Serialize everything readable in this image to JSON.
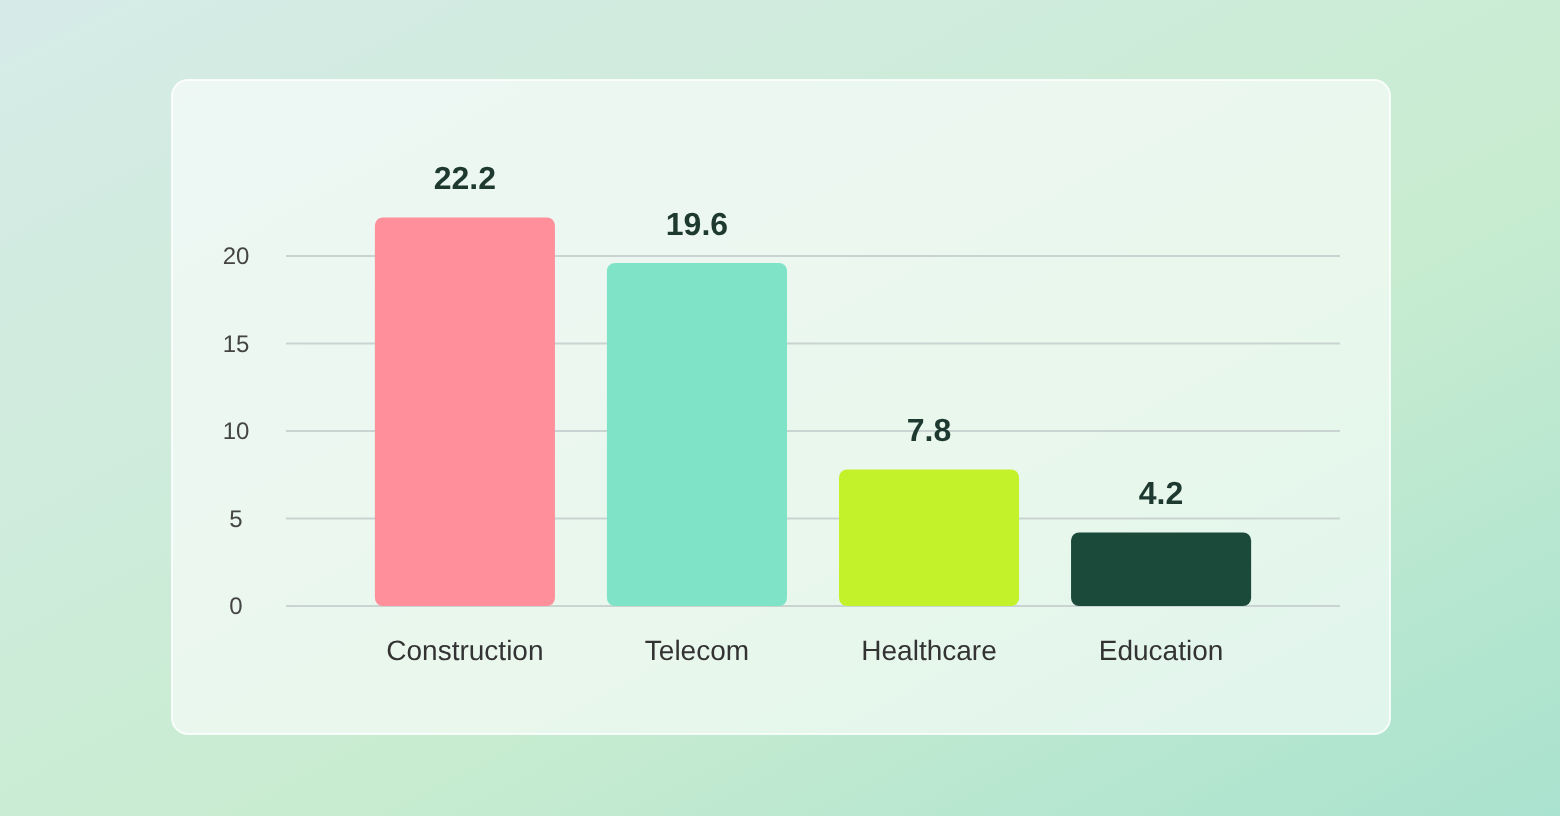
{
  "chart_data": {
    "type": "bar",
    "categories": [
      "Construction",
      "Telecom",
      "Healthcare",
      "Education"
    ],
    "values": [
      22.2,
      19.6,
      7.8,
      4.2
    ],
    "colors": [
      "#ff8f9a",
      "#7fe3c8",
      "#c4f22a",
      "#1b4a3b"
    ],
    "ylim": [
      0,
      22.2
    ],
    "yticks": [
      0,
      5,
      10,
      15,
      20
    ],
    "grid": "y",
    "data_labels": true
  }
}
